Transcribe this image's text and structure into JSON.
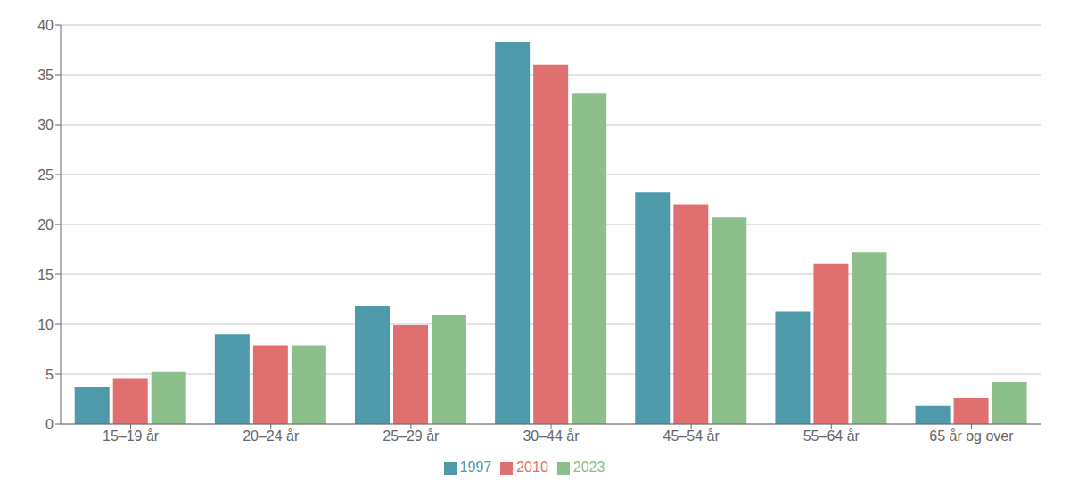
{
  "chart_data": {
    "type": "bar",
    "categories": [
      "15–19 år",
      "20–24 år",
      "25–29 år",
      "30–44 år",
      "45–54 år",
      "55–64 år",
      "65 år og over"
    ],
    "series": [
      {
        "name": "1997",
        "color": "#4e9aab",
        "values": [
          3.7,
          9.0,
          11.8,
          38.3,
          23.2,
          11.3,
          1.8
        ]
      },
      {
        "name": "2010",
        "color": "#e07070",
        "values": [
          4.6,
          7.9,
          9.9,
          36.0,
          22.0,
          16.1,
          2.6
        ]
      },
      {
        "name": "2023",
        "color": "#8dbf8d",
        "values": [
          5.2,
          7.9,
          10.9,
          33.2,
          20.7,
          17.2,
          4.2
        ]
      }
    ],
    "ylim": [
      0,
      40
    ],
    "yticks": [
      0,
      5,
      10,
      15,
      20,
      25,
      30,
      35,
      40
    ],
    "grid": true,
    "legend": "bottom"
  }
}
